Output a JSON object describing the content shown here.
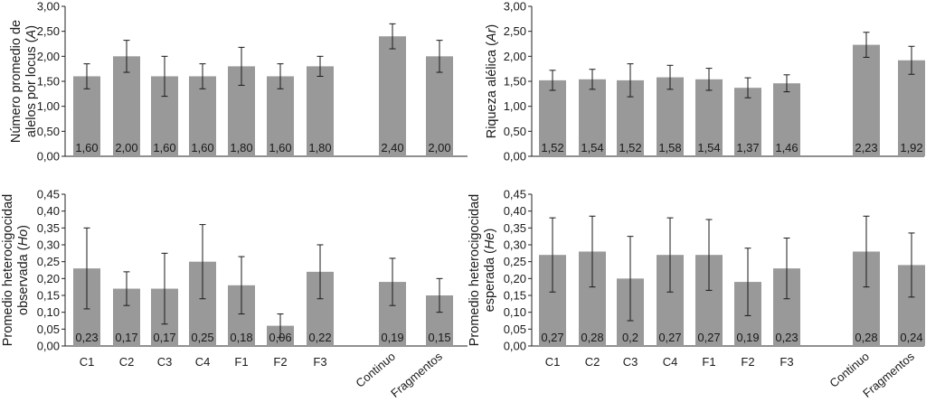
{
  "chart_data": [
    {
      "type": "bar",
      "panel": "top-left",
      "ylabel_parts": [
        "Número promedio de",
        "alelos por locus (",
        "A",
        ")"
      ],
      "ylim": [
        0,
        3
      ],
      "yticks": [
        "0,00",
        "0,50",
        "1,00",
        "1,50",
        "2,00",
        "2,50",
        "3,00"
      ],
      "categories": [
        "C1",
        "C2",
        "C3",
        "C4",
        "F1",
        "F2",
        "F3",
        "Continuo",
        "Fragmentos"
      ],
      "values": [
        1.6,
        2.0,
        1.6,
        1.6,
        1.8,
        1.6,
        1.8,
        2.4,
        2.0
      ],
      "value_labels": [
        "1,60",
        "2,00",
        "1,60",
        "1,60",
        "1,80",
        "1,60",
        "1,80",
        "2,40",
        "2,00"
      ],
      "errors": [
        0.25,
        0.32,
        0.4,
        0.25,
        0.38,
        0.25,
        0.2,
        0.25,
        0.32
      ],
      "show_xlabels": false
    },
    {
      "type": "bar",
      "panel": "top-right",
      "ylabel_parts": [
        "",
        "Riqueza alélica (",
        "Ar",
        ")"
      ],
      "ylim": [
        0,
        3
      ],
      "yticks": [
        "0,00",
        "0,50",
        "1,00",
        "1,50",
        "2,00",
        "2,50",
        "3,00"
      ],
      "categories": [
        "C1",
        "C2",
        "C3",
        "C4",
        "F1",
        "F2",
        "F3",
        "Continuo",
        "Fragmentos"
      ],
      "values": [
        1.52,
        1.54,
        1.52,
        1.58,
        1.54,
        1.37,
        1.46,
        2.23,
        1.92
      ],
      "value_labels": [
        "1,52",
        "1,54",
        "1,52",
        "1,58",
        "1,54",
        "1,37",
        "1,46",
        "2,23",
        "1,92"
      ],
      "errors": [
        0.2,
        0.2,
        0.33,
        0.24,
        0.22,
        0.2,
        0.17,
        0.25,
        0.28
      ],
      "show_xlabels": false
    },
    {
      "type": "bar",
      "panel": "bottom-left",
      "ylabel_parts": [
        "Promedio heterocigocidad",
        "observada (",
        "Ho",
        ")"
      ],
      "ylim": [
        0,
        0.45
      ],
      "yticks": [
        "0,00",
        "0,05",
        "0,10",
        "0,15",
        "0,20",
        "0,25",
        "0,30",
        "0,35",
        "0,40",
        "0,45"
      ],
      "categories": [
        "C1",
        "C2",
        "C3",
        "C4",
        "F1",
        "F2",
        "F3",
        "Continuo",
        "Fragmentos"
      ],
      "values": [
        0.23,
        0.17,
        0.17,
        0.25,
        0.18,
        0.06,
        0.22,
        0.19,
        0.15
      ],
      "value_labels": [
        "0,23",
        "0,17",
        "0,17",
        "0,25",
        "0,18",
        "0,06",
        "0,22",
        "0,19",
        "0,15"
      ],
      "errors": [
        0.12,
        0.05,
        0.105,
        0.11,
        0.085,
        0.035,
        0.08,
        0.07,
        0.05
      ],
      "show_xlabels": true
    },
    {
      "type": "bar",
      "panel": "bottom-right",
      "ylabel_parts": [
        "Promedio heterocigocidad",
        "esperada (",
        "He",
        ")"
      ],
      "ylim": [
        0,
        0.45
      ],
      "yticks": [
        "0,00",
        "0,05",
        "0,10",
        "0,15",
        "0,20",
        "0,25",
        "0,30",
        "0,35",
        "0,40",
        "0,45"
      ],
      "categories": [
        "C1",
        "C2",
        "C3",
        "C4",
        "F1",
        "F2",
        "F3",
        "Continuo",
        "Fragmentos"
      ],
      "values": [
        0.27,
        0.28,
        0.2,
        0.27,
        0.27,
        0.19,
        0.23,
        0.28,
        0.24
      ],
      "value_labels": [
        "0,27",
        "0,28",
        "0,2",
        "0,27",
        "0,27",
        "0,19",
        "0,23",
        "0,28",
        "0,24"
      ],
      "errors": [
        0.11,
        0.105,
        0.125,
        0.11,
        0.105,
        0.1,
        0.09,
        0.105,
        0.095
      ],
      "show_xlabels": true
    }
  ],
  "colors": {
    "bar": "#999999",
    "axis": "#222222",
    "error": "#1a1a1a"
  }
}
